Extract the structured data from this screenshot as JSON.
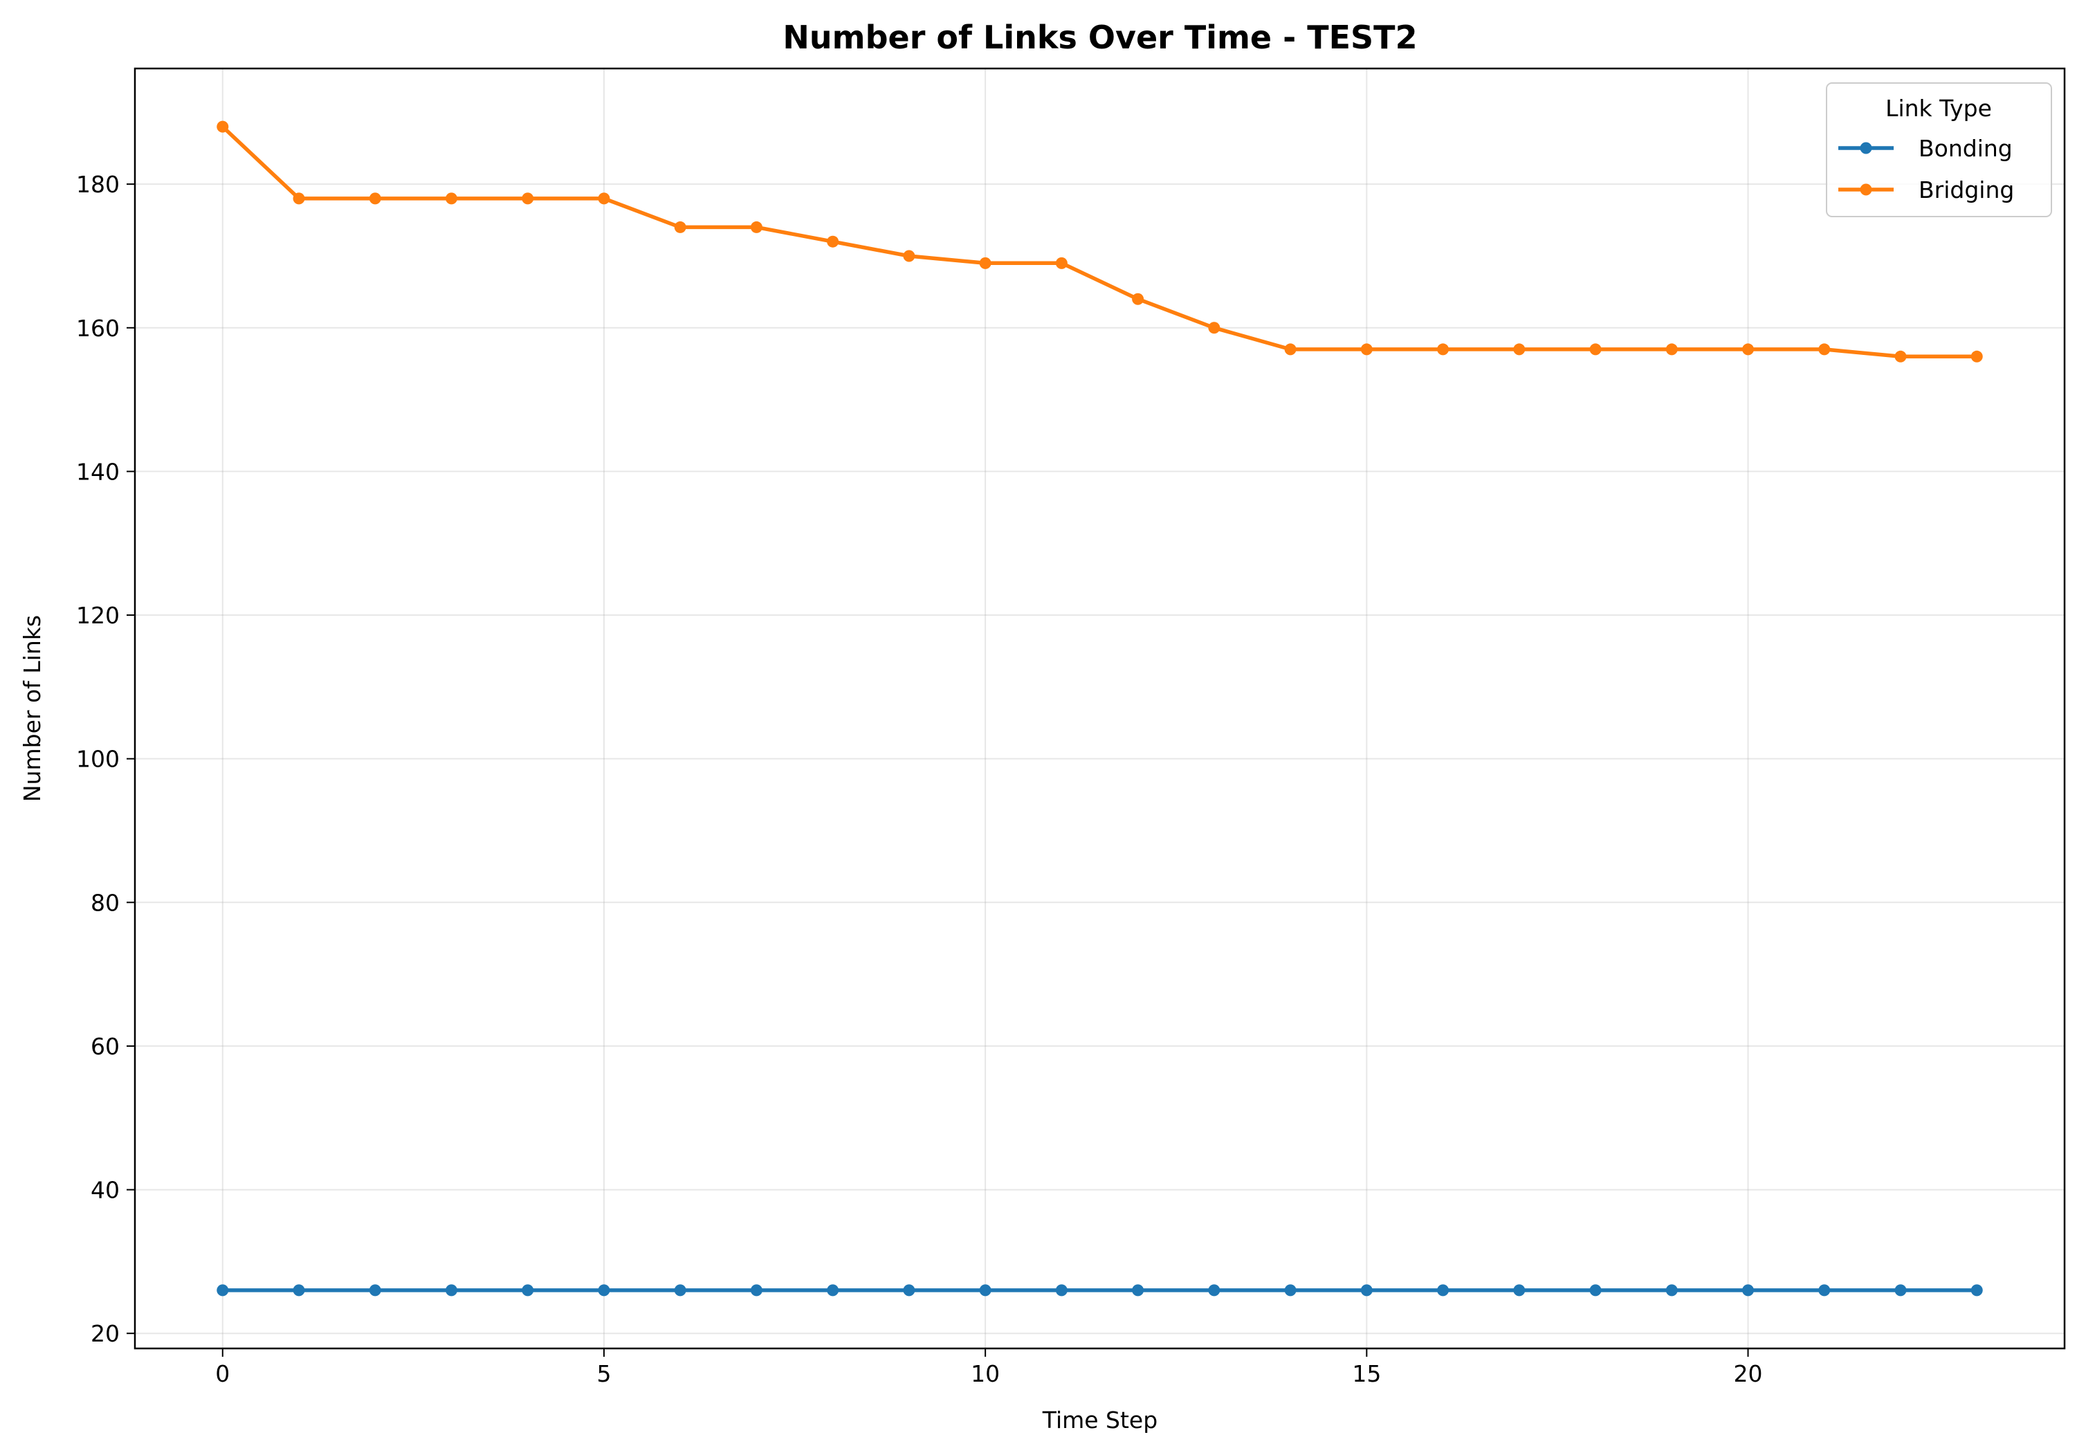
{
  "chart_data": {
    "type": "line",
    "title": "Number of Links Over Time - TEST2",
    "xlabel": "Time Step",
    "ylabel": "Number of Links",
    "xlim": [
      -1.15,
      24.15
    ],
    "ylim": [
      17.9,
      196.1
    ],
    "x_ticks": [
      0,
      5,
      10,
      15,
      20
    ],
    "y_ticks": [
      20,
      40,
      60,
      80,
      100,
      120,
      140,
      160,
      180
    ],
    "grid": true,
    "legend": {
      "title": "Link Type",
      "placement": "top-right"
    },
    "x": [
      0,
      1,
      2,
      3,
      4,
      5,
      6,
      7,
      8,
      9,
      10,
      11,
      12,
      13,
      14,
      15,
      16,
      17,
      18,
      19,
      20,
      21,
      22,
      23
    ],
    "series": [
      {
        "name": "Bonding",
        "color": "#1f77b4",
        "values": [
          26,
          26,
          26,
          26,
          26,
          26,
          26,
          26,
          26,
          26,
          26,
          26,
          26,
          26,
          26,
          26,
          26,
          26,
          26,
          26,
          26,
          26,
          26,
          26
        ]
      },
      {
        "name": "Bridging",
        "color": "#ff7f0e",
        "values": [
          188,
          178,
          178,
          178,
          178,
          178,
          174,
          174,
          172,
          170,
          169,
          169,
          164,
          160,
          157,
          157,
          157,
          157,
          157,
          157,
          157,
          157,
          156,
          156
        ]
      }
    ]
  }
}
